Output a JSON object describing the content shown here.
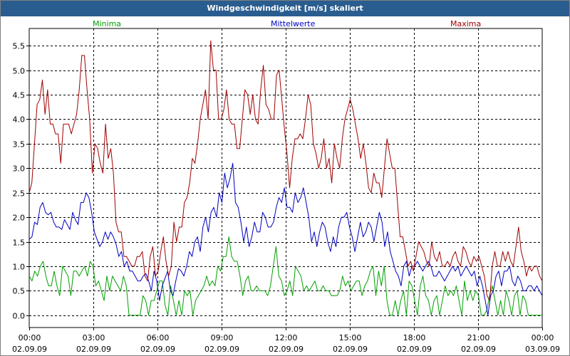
{
  "window": {
    "title": "Windgeschwindigkeit [m/s] skaliert"
  },
  "chart_data": {
    "type": "line",
    "title": "Windgeschwindigkeit [m/s] skaliert",
    "xlabel": "",
    "ylabel": "",
    "ylim": [
      -0.25,
      5.85
    ],
    "xlim": [
      0,
      24
    ],
    "grid": true,
    "y_ticks": [
      0.0,
      0.5,
      1.0,
      1.5,
      2.0,
      2.5,
      3.0,
      3.5,
      4.0,
      4.5,
      5.0,
      5.5
    ],
    "y_tick_labels": [
      "0.0",
      "0.5",
      "1.0",
      "1.5",
      "2.0",
      "2.5",
      "3.0",
      "3.5",
      "4.0",
      "4.5",
      "5.0",
      "5.5"
    ],
    "x_ticks": [
      {
        "x": 0,
        "time": "00:00",
        "date": "02.09.09"
      },
      {
        "x": 3,
        "time": "03:00",
        "date": "02.09.09"
      },
      {
        "x": 6,
        "time": "06:00",
        "date": "02.09.09"
      },
      {
        "x": 9,
        "time": "09:00",
        "date": "02.09.09"
      },
      {
        "x": 12,
        "time": "12:00",
        "date": "02.09.09"
      },
      {
        "x": 15,
        "time": "15:00",
        "date": "02.09.09"
      },
      {
        "x": 18,
        "time": "18:00",
        "date": "02.09.09"
      },
      {
        "x": 21,
        "time": "21:00",
        "date": "02.09.09"
      },
      {
        "x": 24,
        "time": "00:00",
        "date": "03.09.09"
      }
    ],
    "series": [
      {
        "name": "Minima",
        "color": "#00a000",
        "values": [
          0.8,
          0.7,
          0.9,
          0.8,
          1.0,
          1.1,
          0.8,
          0.6,
          0.6,
          0.9,
          0.6,
          0.4,
          1.0,
          0.9,
          0.8,
          0.4,
          0.9,
          0.9,
          0.8,
          0.9,
          1.0,
          0.8,
          1.1,
          1.0,
          0.6,
          0.7,
          0.5,
          0.3,
          0.8,
          0.5,
          0.8,
          0.7,
          0.6,
          0.5,
          0.8,
          0.6,
          0.0,
          0.0,
          0.0,
          0.0,
          0.0,
          0.4,
          0.3,
          0.0,
          0.3,
          0.3,
          0.5,
          0.7,
          0.7,
          0.2,
          0.0,
          0.6,
          0.3,
          0.0,
          0.3,
          0.0,
          0.5,
          0.4,
          0.5,
          0.0,
          0.3,
          0.4,
          0.5,
          0.6,
          0.8,
          0.6,
          0.7,
          0.6,
          1.0,
          0.9,
          1.2,
          1.2,
          1.6,
          1.2,
          1.1,
          1.1,
          0.8,
          0.4,
          0.7,
          0.8,
          0.5,
          0.5,
          0.6,
          0.5,
          0.5,
          0.5,
          0.4,
          0.6,
          1.0,
          1.4,
          0.8,
          0.7,
          0.4,
          0.5,
          0.7,
          0.4,
          1.0,
          0.9,
          0.8,
          0.5,
          0.6,
          0.5,
          0.6,
          0.7,
          0.5,
          0.5,
          0.6,
          0.5,
          0.5,
          0.4,
          0.4,
          0.4,
          0.5,
          0.8,
          0.6,
          0.7,
          0.5,
          0.6,
          0.7,
          0.7,
          0.4,
          0.6,
          0.7,
          0.9,
          1.0,
          0.4,
          0.9,
          0.6,
          1.0,
          0.3,
          0.0,
          0.0,
          0.3,
          0.0,
          0.3,
          0.5,
          0.0,
          0.7,
          0.6,
          0.3,
          0.0,
          0.6,
          0.8,
          0.4,
          0.3,
          0.0,
          0.3,
          0.4,
          0.0,
          0.3,
          0.6,
          0.4,
          0.5,
          0.4,
          0.6,
          0.3,
          0.0,
          0.7,
          0.3,
          0.5,
          0.3,
          0.5,
          0.4,
          0.0,
          0.0,
          0.1,
          0.4,
          0.6,
          0.3,
          0.0,
          0.3,
          0.0,
          0.5,
          0.3,
          0.0,
          0.4,
          0.5,
          0.0,
          0.4,
          0.3,
          0.0,
          0.0,
          0.0,
          0.0,
          0.0,
          0.0
        ]
      },
      {
        "name": "Mittelwerte",
        "color": "#0000c0",
        "values": [
          1.55,
          1.6,
          1.9,
          1.85,
          2.2,
          2.3,
          2.1,
          2.05,
          2.1,
          1.9,
          1.8,
          1.8,
          1.75,
          1.95,
          1.85,
          1.75,
          2.1,
          1.95,
          1.85,
          2.3,
          2.3,
          2.5,
          2.4,
          2.1,
          1.7,
          1.55,
          1.4,
          1.5,
          1.7,
          1.55,
          1.7,
          1.6,
          1.45,
          1.2,
          1.3,
          1.0,
          1.1,
          0.9,
          0.9,
          0.8,
          0.7,
          0.7,
          0.8,
          0.85,
          0.7,
          0.5,
          0.9,
          0.7,
          0.3,
          0.6,
          0.75,
          0.9,
          0.5,
          0.4,
          0.7,
          0.95,
          0.9,
          0.8,
          1.0,
          1.3,
          1.2,
          1.5,
          1.6,
          1.3,
          1.8,
          2.0,
          1.7,
          2.1,
          2.2,
          2.0,
          2.5,
          2.3,
          2.9,
          2.6,
          2.8,
          3.1,
          2.3,
          2.2,
          1.9,
          1.5,
          1.8,
          1.4,
          1.6,
          1.9,
          1.7,
          1.7,
          2.1,
          2.0,
          1.8,
          1.8,
          1.9,
          2.2,
          2.4,
          2.3,
          2.6,
          2.2,
          2.2,
          2.1,
          2.5,
          2.3,
          2.4,
          2.6,
          2.3,
          2.0,
          1.5,
          1.7,
          1.4,
          1.7,
          1.9,
          1.8,
          1.5,
          1.3,
          1.6,
          1.4,
          1.8,
          2.0,
          2.0,
          2.1,
          1.8,
          1.6,
          1.3,
          1.6,
          1.9,
          1.6,
          1.7,
          1.9,
          1.8,
          1.5,
          1.8,
          2.1,
          1.9,
          1.4,
          1.7,
          1.3,
          1.1,
          0.9,
          0.8,
          0.6,
          1.0,
          1.1,
          0.8,
          1.0,
          1.0,
          1.1,
          1.0,
          0.9,
          1.0,
          1.1,
          1.0,
          0.8,
          0.8,
          0.9,
          0.8,
          0.7,
          0.8,
          0.9,
          1.0,
          0.9,
          1.0,
          0.8,
          0.9,
          1.0,
          0.9,
          0.8,
          0.9,
          0.6,
          0.8,
          0.6,
          0.3,
          0.0,
          0.4,
          0.5,
          0.8,
          0.9,
          0.6,
          0.9,
          0.9,
          1.0,
          0.7,
          0.6,
          0.8,
          0.7,
          0.5,
          0.5,
          0.6,
          0.6,
          0.5,
          0.6,
          0.5,
          0.4
        ]
      },
      {
        "name": "Maxima",
        "color": "#a00000",
        "values": [
          2.5,
          2.7,
          3.5,
          4.3,
          4.4,
          4.8,
          4.1,
          4.6,
          3.9,
          3.9,
          3.7,
          3.7,
          3.1,
          3.9,
          3.9,
          3.9,
          3.7,
          3.9,
          4.1,
          4.6,
          5.3,
          5.3,
          4.6,
          4.0,
          2.9,
          3.5,
          3.4,
          3.1,
          2.9,
          3.9,
          3.2,
          3.4,
          2.9,
          1.9,
          1.7,
          1.7,
          1.2,
          1.2,
          1.1,
          1.0,
          1.0,
          1.2,
          1.2,
          1.3,
          0.8,
          0.7,
          1.2,
          1.4,
          0.8,
          0.9,
          1.3,
          1.6,
          1.1,
          0.8,
          1.0,
          1.9,
          1.5,
          1.8,
          1.8,
          2.3,
          2.4,
          2.7,
          3.2,
          3.1,
          3.5,
          4.0,
          4.3,
          4.6,
          4.0,
          5.6,
          5.0,
          5.0,
          4.0,
          4.0,
          4.2,
          4.6,
          4.0,
          3.9,
          3.9,
          3.4,
          3.4,
          4.0,
          4.6,
          4.5,
          4.1,
          4.5,
          4.0,
          3.9,
          4.6,
          5.1,
          4.3,
          4.2,
          4.0,
          4.0,
          4.9,
          5.0,
          4.4,
          3.8,
          3.3,
          2.6,
          3.2,
          3.6,
          3.6,
          3.7,
          3.6,
          4.0,
          4.5,
          4.3,
          3.5,
          3.3,
          3.0,
          3.2,
          3.6,
          3.0,
          3.2,
          2.7,
          3.5,
          3.2,
          3.0,
          3.6,
          4.0,
          4.2,
          4.4,
          4.2,
          3.9,
          3.6,
          3.2,
          3.5,
          3.1,
          2.6,
          2.5,
          2.9,
          2.7,
          2.7,
          2.4,
          3.0,
          3.6,
          3.3,
          3.0,
          3.0,
          2.3,
          1.6,
          1.6,
          1.3,
          1.0,
          1.1,
          0.9,
          1.2,
          1.5,
          1.4,
          1.3,
          1.1,
          1.0,
          1.5,
          1.2,
          1.1,
          1.3,
          1.0,
          1.0,
          1.1,
          1.0,
          1.2,
          1.3,
          1.1,
          1.0,
          1.4,
          1.3,
          1.1,
          1.0,
          1.2,
          1.1,
          1.2,
          1.0,
          0.8,
          0.4,
          0.3,
          1.0,
          1.3,
          1.0,
          1.0,
          1.3,
          1.1,
          1.3,
          1.1,
          1.0,
          1.4,
          1.8,
          1.3,
          1.1,
          0.8,
          1.0,
          0.9,
          1.0,
          1.0,
          0.8,
          0.7
        ]
      }
    ]
  }
}
